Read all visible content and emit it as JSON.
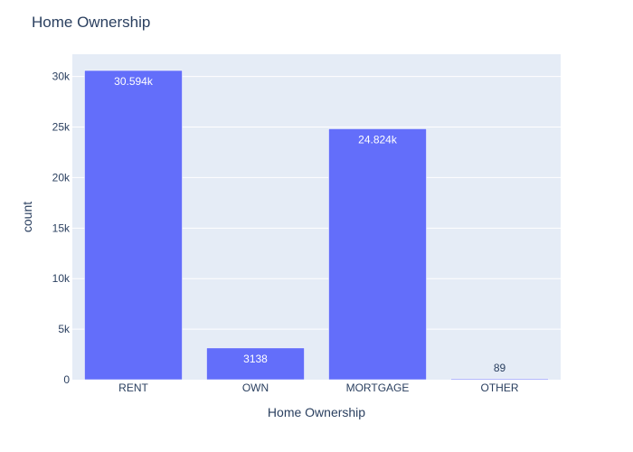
{
  "chart_data": {
    "type": "bar",
    "title": "Home Ownership",
    "xlabel": "Home Ownership",
    "ylabel": "count",
    "categories": [
      "RENT",
      "OWN",
      "MORTGAGE",
      "OTHER"
    ],
    "values": [
      30594,
      3138,
      24824,
      89
    ],
    "data_labels": [
      "30.594k",
      "3138",
      "24.824k",
      "89"
    ],
    "ylim": [
      0,
      32204
    ],
    "yticks": [
      0,
      5000,
      10000,
      15000,
      20000,
      25000,
      30000
    ],
    "ytick_labels": [
      "0",
      "5k",
      "10k",
      "15k",
      "20k",
      "25k",
      "30k"
    ],
    "grid": true,
    "bar_color": "#636efa",
    "plot_bg": "#e5ecf6"
  }
}
